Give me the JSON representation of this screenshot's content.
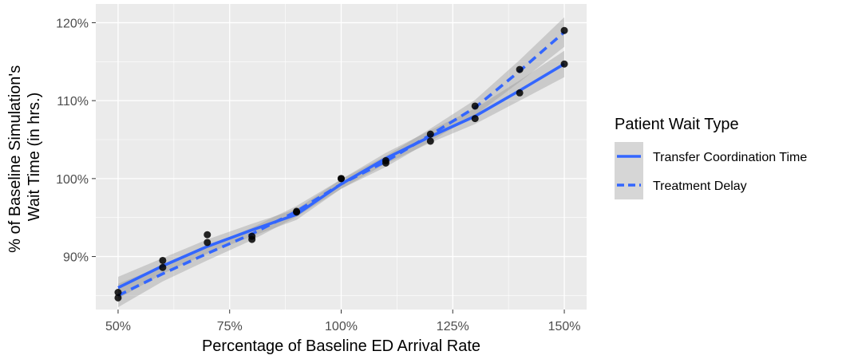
{
  "chart_data": {
    "type": "scatter",
    "title": "",
    "xlabel": "Percentage of Baseline ED Arrival Rate",
    "ylabel_lines": [
      "% of Baseline Simulation's",
      "Wait Time (in hrs.)"
    ],
    "x_ticks": [
      {
        "value": 50,
        "label": "50%"
      },
      {
        "value": 75,
        "label": "75%"
      },
      {
        "value": 100,
        "label": "100%"
      },
      {
        "value": 125,
        "label": "125%"
      },
      {
        "value": 150,
        "label": "150%"
      }
    ],
    "y_ticks": [
      {
        "value": 90,
        "label": "90%"
      },
      {
        "value": 100,
        "label": "100%"
      },
      {
        "value": 110,
        "label": "110%"
      },
      {
        "value": 120,
        "label": "120%"
      }
    ],
    "xlim": [
      45,
      155
    ],
    "ylim": [
      83.2,
      122.4
    ],
    "grid": true,
    "legend": {
      "title": "Patient Wait Type",
      "position": "right"
    },
    "series": [
      {
        "name": "Transfer Coordination Time",
        "line_style": "solid",
        "color": "#3366FF",
        "points": [
          [
            50,
            84.7
          ],
          [
            60,
            89.5
          ],
          [
            70,
            92.8
          ],
          [
            80,
            92.6
          ],
          [
            90,
            95.8
          ],
          [
            100,
            100.0
          ],
          [
            110,
            102.3
          ],
          [
            120,
            105.7
          ],
          [
            130,
            107.7
          ],
          [
            140,
            111.0
          ],
          [
            150,
            114.7
          ]
        ],
        "fit": [
          [
            50,
            86.0
          ],
          [
            60,
            88.8
          ],
          [
            70,
            91.3
          ],
          [
            80,
            93.4
          ],
          [
            90,
            95.4
          ],
          [
            100,
            99.3
          ],
          [
            110,
            102.6
          ],
          [
            120,
            105.4
          ],
          [
            130,
            108.0
          ],
          [
            140,
            111.3
          ],
          [
            150,
            114.7
          ]
        ],
        "band_halfwidth": [
          1.4,
          1.0,
          0.9,
          0.8,
          0.7,
          0.6,
          0.7,
          0.8,
          1.0,
          1.3,
          1.7
        ]
      },
      {
        "name": "Treatment Delay",
        "line_style": "dashed",
        "color": "#3366FF",
        "points": [
          [
            50,
            85.4
          ],
          [
            60,
            88.6
          ],
          [
            70,
            91.8
          ],
          [
            80,
            92.2
          ],
          [
            90,
            95.7
          ],
          [
            100,
            100.0
          ],
          [
            110,
            102.0
          ],
          [
            120,
            104.8
          ],
          [
            130,
            109.3
          ],
          [
            140,
            114.0
          ],
          [
            150,
            119.0
          ]
        ],
        "fit": [
          [
            50,
            85.0
          ],
          [
            60,
            87.8
          ],
          [
            70,
            90.4
          ],
          [
            80,
            92.9
          ],
          [
            90,
            95.8
          ],
          [
            100,
            99.3
          ],
          [
            110,
            102.2
          ],
          [
            120,
            105.6
          ],
          [
            130,
            109.1
          ],
          [
            140,
            113.8
          ],
          [
            150,
            118.8
          ]
        ],
        "band_halfwidth": [
          1.5,
          1.0,
          0.9,
          0.8,
          0.7,
          0.6,
          0.7,
          0.8,
          1.0,
          1.4,
          1.9
        ]
      }
    ]
  }
}
